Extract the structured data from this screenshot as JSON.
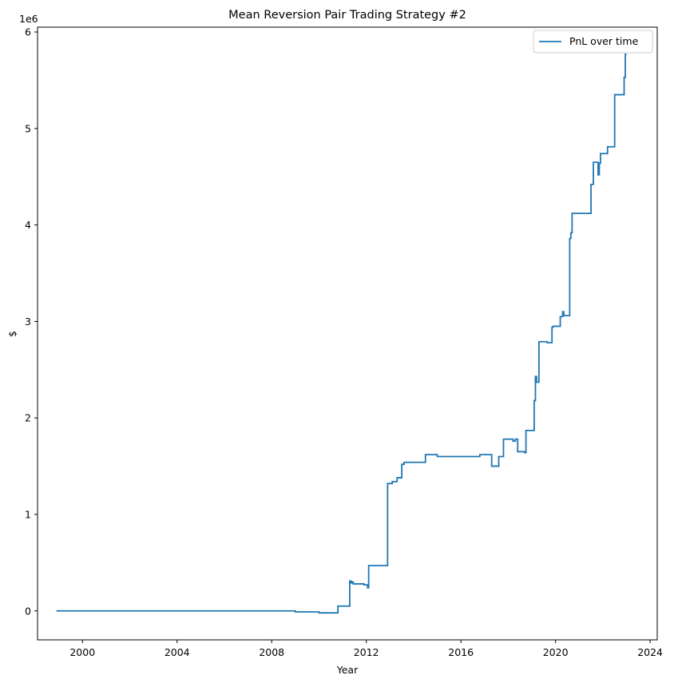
{
  "chart_data": {
    "type": "line",
    "title": "Mean Reversion Pair Trading Strategy #2",
    "xlabel": "Year",
    "ylabel": "$",
    "y_offset_label": "1e6",
    "xlim": [
      1998.1,
      2024.3
    ],
    "ylim": [
      -300000,
      6050000
    ],
    "x_ticks": [
      2000,
      2004,
      2008,
      2012,
      2016,
      2020,
      2024
    ],
    "y_ticks": [
      0,
      1,
      2,
      3,
      4,
      5,
      6
    ],
    "grid": false,
    "legend_position": "upper-right",
    "line_color": "#1f77b4",
    "series": [
      {
        "name": "PnL over time",
        "step": true,
        "x": [
          1998.9,
          2009.0,
          2010.0,
          2010.8,
          2011.3,
          2011.35,
          2011.4,
          2011.45,
          2011.9,
          2012.05,
          2012.1,
          2012.9,
          2013.1,
          2013.3,
          2013.5,
          2013.6,
          2014.5,
          2015.0,
          2016.8,
          2017.3,
          2017.6,
          2017.8,
          2018.2,
          2018.3,
          2018.4,
          2018.7,
          2018.75,
          2019.1,
          2019.15,
          2019.2,
          2019.3,
          2019.65,
          2019.7,
          2019.85,
          2019.9,
          2020.2,
          2020.3,
          2020.35,
          2020.6,
          2020.65,
          2020.7,
          2021.5,
          2021.6,
          2021.8,
          2021.85,
          2021.9,
          2022.2,
          2022.5,
          2022.9,
          2022.95,
          2023.0
        ],
        "y": [
          0,
          -10000,
          -20000,
          50000,
          310000,
          290000,
          300000,
          280000,
          270000,
          240000,
          470000,
          1320000,
          1340000,
          1380000,
          1520000,
          1540000,
          1620000,
          1600000,
          1620000,
          1500000,
          1600000,
          1780000,
          1760000,
          1780000,
          1650000,
          1640000,
          1870000,
          2180000,
          2430000,
          2370000,
          2790000,
          2780000,
          2780000,
          2940000,
          2950000,
          3050000,
          3100000,
          3060000,
          3860000,
          3920000,
          4120000,
          4420000,
          4650000,
          4520000,
          4640000,
          4740000,
          4810000,
          5350000,
          5530000,
          5770000,
          5770000
        ]
      }
    ]
  }
}
